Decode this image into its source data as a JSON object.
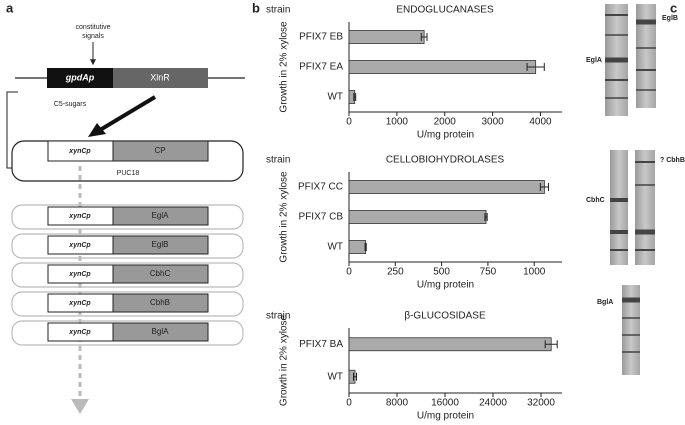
{
  "panel_labels": [
    "a",
    "b",
    "c"
  ],
  "diagram": {
    "constitutive_signals": [
      "constitutive",
      "signals"
    ],
    "promoter": "gpdAp",
    "activator": "XlnR",
    "inducer": "C5-sugars",
    "plasmid": {
      "promoter": "xynCp",
      "gene": "CP",
      "vector": "PUC18"
    },
    "constructs": [
      {
        "promoter": "xynCp",
        "gene": "EglA"
      },
      {
        "promoter": "xynCp",
        "gene": "EglB"
      },
      {
        "promoter": "xynCp",
        "gene": "CbhC"
      },
      {
        "promoter": "xynCp",
        "gene": "CbhB"
      },
      {
        "promoter": "xynCp",
        "gene": "BglA"
      }
    ]
  },
  "gels": {
    "labels": [
      "EglB",
      "EglA",
      "CbhC",
      "? CbhB",
      "BglA"
    ]
  },
  "chart_data": [
    {
      "type": "bar",
      "title": "ENDOGLUCANASES",
      "column_header": "strain",
      "y_label": "Growth in 2% xylose",
      "x_label": "U/mg protein",
      "categories": [
        "PFIX7 EB",
        "PFIX7 EA",
        "WT"
      ],
      "values": [
        1570,
        3900,
        120
      ],
      "errors": [
        60,
        180,
        20
      ],
      "color": "#aaaaaa",
      "xlim": [
        0,
        4450
      ],
      "xticks": [
        0,
        1000,
        2000,
        3000,
        4000
      ]
    },
    {
      "type": "bar",
      "title": "CELLOBIOHYDROLASES",
      "column_header": "strain",
      "y_label": "Growth in 2% xylose",
      "x_label": "U/mg protein",
      "categories": [
        "PFIX7 CC",
        "PFIX7 CB",
        "WT"
      ],
      "values": [
        1055,
        740,
        90
      ],
      "errors": [
        22,
        6,
        3
      ],
      "color": "#aaaaaa",
      "xlim": [
        0,
        1150
      ],
      "xticks": [
        0,
        250,
        500,
        750,
        1000
      ]
    },
    {
      "type": "bar",
      "title": "β-GLUCOSIDASE",
      "column_header": "strain",
      "y_label": "Growth in 2% xylose",
      "x_label": "U/mg protein",
      "categories": [
        "PFIX7 BA",
        "WT"
      ],
      "values": [
        33700,
        1000
      ],
      "errors": [
        1000,
        250
      ],
      "color": "#aaaaaa",
      "xlim": [
        0,
        35500
      ],
      "xticks": [
        0,
        8000,
        16000,
        24000,
        32000
      ]
    }
  ]
}
